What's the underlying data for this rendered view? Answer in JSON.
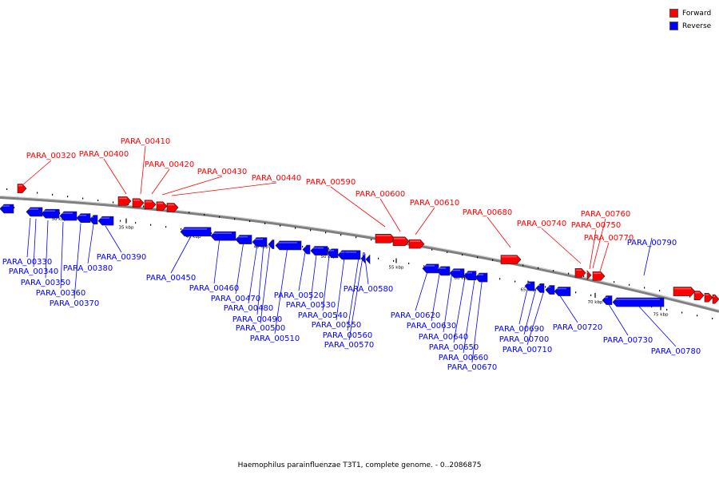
{
  "caption": "Haemophilus parainfluenzae T3T1, complete genome. - 0..2086875",
  "legend": [
    {
      "label": "Forward",
      "color": "#ff0000"
    },
    {
      "label": "Reverse",
      "color": "#0000ff"
    }
  ],
  "colors": {
    "forward": "#ff0000",
    "reverse": "#0000ff",
    "axis": "#808080"
  },
  "scale_labels": [
    "30 kbp",
    "35 kbp",
    "40 kbp",
    "45 kbp",
    "50 kbp",
    "55 kbp",
    "60 kbp",
    "65 kbp",
    "70 kbp",
    "75 kbp"
  ],
  "forward_labels": [
    "PARA_00320",
    "PARA_00400",
    "PARA_00410",
    "PARA_00420",
    "PARA_00430",
    "PARA_00440",
    "PARA_00590",
    "PARA_00600",
    "PARA_00610",
    "PARA_00680",
    "PARA_00740",
    "PARA_00760",
    "PARA_00750",
    "PARA_00770"
  ],
  "reverse_labels": [
    "PARA_00330",
    "PARA_00340",
    "PARA_00350",
    "PARA_00360",
    "PARA_00370",
    "PARA_00380",
    "PARA_00390",
    "PARA_00450",
    "PARA_00460",
    "PARA_00470",
    "PARA_00480",
    "PARA_00490",
    "PARA_00500",
    "PARA_00510",
    "PARA_00520",
    "PARA_00530",
    "PARA_00540",
    "PARA_00550",
    "PARA_00560",
    "PARA_00570",
    "PARA_00580",
    "PARA_00620",
    "PARA_00630",
    "PARA_00640",
    "PARA_00650",
    "PARA_00660",
    "PARA_00670",
    "PARA_00690",
    "PARA_00700",
    "PARA_00710",
    "PARA_00720",
    "PARA_00730",
    "PARA_00780",
    "PARA_00790"
  ]
}
